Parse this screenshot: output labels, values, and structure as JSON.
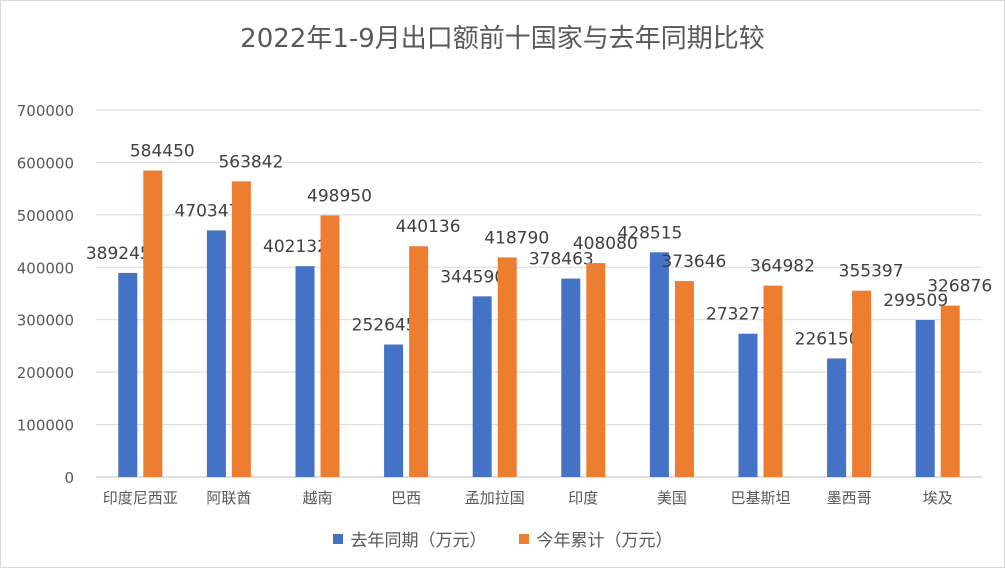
{
  "chart_data": {
    "type": "bar",
    "title": "2022年1-9月出口额前十国家与去年同期比较",
    "categories": [
      "印度尼西亚",
      "阿联酋",
      "越南",
      "巴西",
      "孟加拉国",
      "印度",
      "美国",
      "巴基斯坦",
      "墨西哥",
      "埃及"
    ],
    "series": [
      {
        "name": "去年同期（万元）",
        "color": "#4472c4",
        "values": [
          389245,
          470347,
          402132,
          252645,
          344590,
          378463,
          428515,
          273277,
          226150,
          299509
        ]
      },
      {
        "name": "今年累计（万元）",
        "color": "#ed7d31",
        "values": [
          584450,
          563842,
          498950,
          440136,
          418790,
          408080,
          373646,
          364982,
          355397,
          326876
        ]
      }
    ],
    "ylim": [
      0,
      700000
    ],
    "yticks": [
      0,
      100000,
      200000,
      300000,
      400000,
      500000,
      600000,
      700000
    ],
    "grid": true,
    "legend_position": "bottom"
  }
}
